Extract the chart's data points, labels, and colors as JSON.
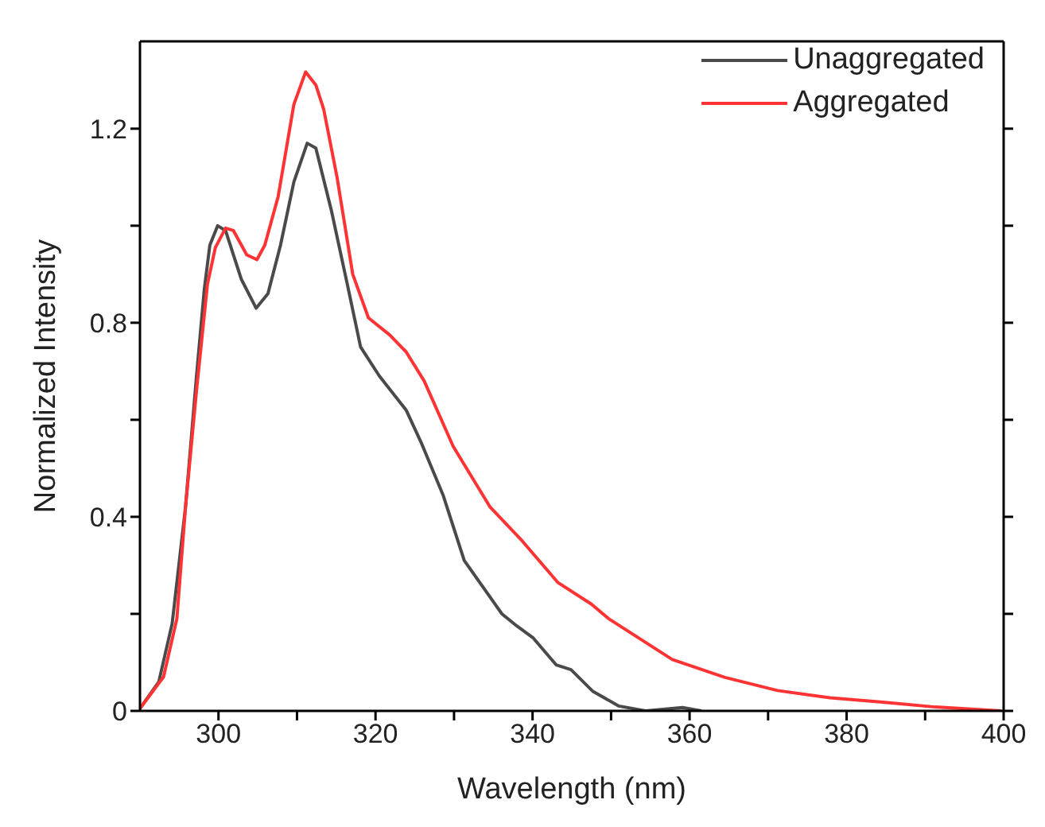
{
  "chart_data": {
    "type": "line",
    "xlabel": "Wavelength (nm)",
    "ylabel": "Normalized Intensity",
    "xlim": [
      290,
      400
    ],
    "ylim": [
      0,
      1.38
    ],
    "xticks": [
      300,
      {
        "value": 310,
        "label": null
      },
      320,
      {
        "value": 330,
        "label": null
      },
      340,
      {
        "value": 350,
        "label": null
      },
      360,
      {
        "value": 370,
        "label": null
      },
      380,
      {
        "value": 390,
        "label": null
      },
      400
    ],
    "yticks": [
      0,
      {
        "value": 0.2,
        "label": null
      },
      0.4,
      {
        "value": 0.6,
        "label": null
      },
      0.8,
      {
        "value": 1.0,
        "label": null
      },
      1.2
    ],
    "legend": "top right",
    "marker": "none",
    "line_style": "solid",
    "series": [
      {
        "name": "Unaggregated",
        "color": "#4a4a4a",
        "x": [
          290,
          292.4,
          294.1,
          295.8,
          297.2,
          298.2,
          298.9,
          299.9,
          300.9,
          302.9,
          304.8,
          306.3,
          307.9,
          309.6,
          311.3,
          312.4,
          314.4,
          316.4,
          318.1,
          320.5,
          323.9,
          325.9,
          328.6,
          331.3,
          336.1,
          338,
          340.1,
          343,
          344.9,
          347.7,
          351,
          354.4,
          359.1,
          361.5
        ],
        "values": [
          0.005,
          0.06,
          0.18,
          0.42,
          0.69,
          0.87,
          0.96,
          1.0,
          0.99,
          0.89,
          0.83,
          0.86,
          0.96,
          1.09,
          1.17,
          1.16,
          1.03,
          0.88,
          0.75,
          0.69,
          0.62,
          0.55,
          0.445,
          0.31,
          0.2,
          0.175,
          0.15,
          0.095,
          0.085,
          0.04,
          0.01,
          0,
          0.007,
          0
        ]
      },
      {
        "name": "Aggregated",
        "color": "#ff3333",
        "x": [
          290,
          293,
          294.7,
          295.8,
          297.2,
          298.6,
          299.6,
          300.9,
          301.9,
          303.6,
          304.9,
          305.9,
          307.6,
          309.6,
          311.1,
          312.4,
          313.4,
          315.1,
          317.1,
          319.1,
          321.8,
          323.9,
          326.2,
          329.9,
          334.6,
          338.7,
          343.2,
          347.5,
          349.7,
          357.8,
          364.5,
          371.2,
          377.9,
          384.6,
          391.3,
          399.7
        ],
        "values": [
          0.005,
          0.07,
          0.19,
          0.42,
          0.66,
          0.88,
          0.955,
          0.995,
          0.99,
          0.94,
          0.93,
          0.96,
          1.06,
          1.25,
          1.317,
          1.29,
          1.24,
          1.1,
          0.9,
          0.81,
          0.775,
          0.74,
          0.68,
          0.545,
          0.42,
          0.35,
          0.265,
          0.22,
          0.19,
          0.106,
          0.069,
          0.042,
          0.027,
          0.018,
          0.008,
          0
        ]
      }
    ]
  }
}
